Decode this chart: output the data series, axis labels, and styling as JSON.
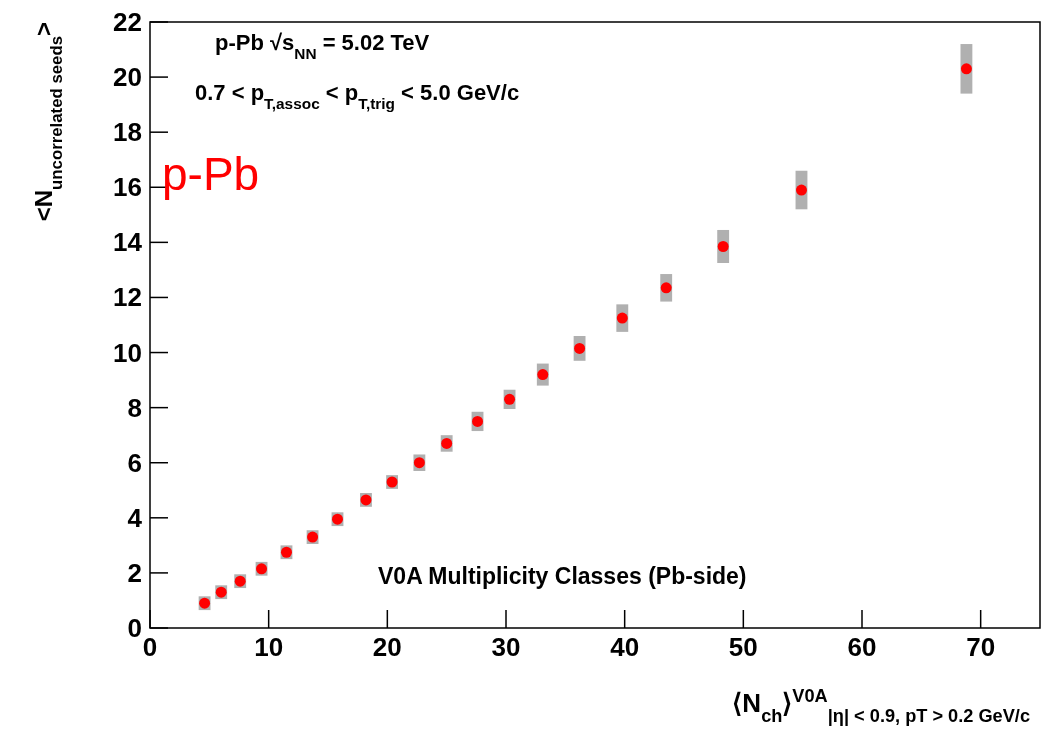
{
  "chart_data": {
    "type": "scatter",
    "xlabel": "⟨N$_{ch}$⟩$^{V0A}$$_{|η| < 0.9,  pT > 0.2 GeV/c}$",
    "ylabel": "<N$_{uncorrelated seeds}$>",
    "annotations": [
      "p-Pb  √s$_{NN}$ = 5.02 TeV",
      "0.7 <  p$_{T,assoc}$ <  p$_{T,trig}$ < 5.0 GeV/c",
      "p-Pb",
      "V0A Multiplicity Classes (Pb-side)"
    ],
    "series": [
      {
        "color": "#ff0000",
        "x": [
          4.6,
          6.0,
          7.6,
          9.4,
          11.5,
          13.7,
          15.8,
          18.2,
          20.4,
          22.7,
          25.0,
          27.6,
          30.3,
          33.1,
          36.2,
          39.8,
          43.5,
          48.3,
          54.9,
          68.8
        ],
        "values": [
          0.9,
          1.3,
          1.7,
          2.15,
          2.75,
          3.3,
          3.95,
          4.65,
          5.3,
          6.0,
          6.7,
          7.5,
          8.3,
          9.2,
          10.15,
          11.25,
          12.35,
          13.85,
          15.9,
          20.3
        ],
        "errors": [
          0.25,
          0.25,
          0.25,
          0.25,
          0.25,
          0.25,
          0.25,
          0.25,
          0.25,
          0.3,
          0.3,
          0.35,
          0.35,
          0.4,
          0.45,
          0.5,
          0.5,
          0.6,
          0.7,
          0.9
        ]
      }
    ],
    "xlim": [
      0,
      75
    ],
    "ylim": [
      0,
      22
    ],
    "xticks": [
      0,
      10,
      20,
      30,
      40,
      50,
      60,
      70
    ],
    "yticks": [
      0,
      2,
      4,
      6,
      8,
      10,
      12,
      14,
      16,
      18,
      20,
      22
    ],
    "marker": "circle",
    "grid": false
  }
}
